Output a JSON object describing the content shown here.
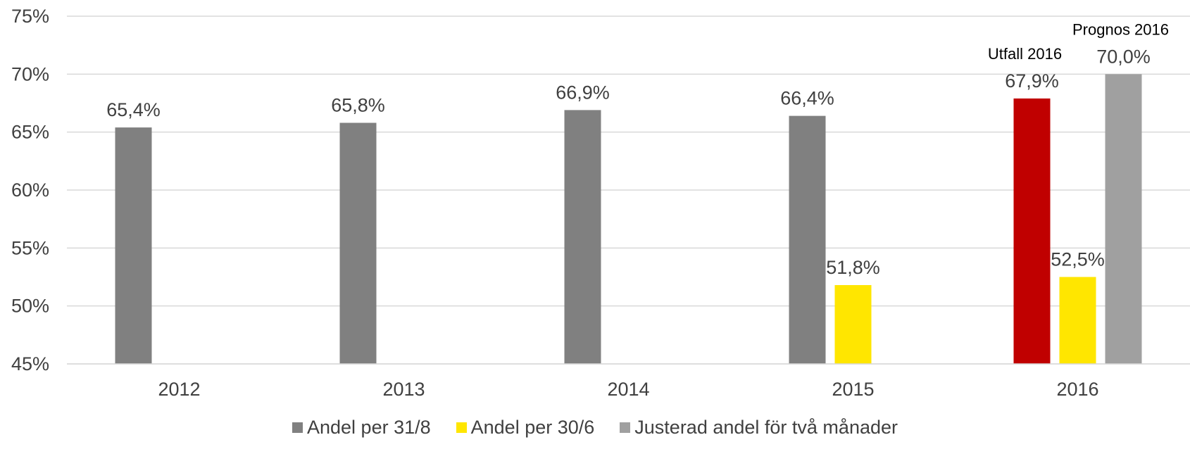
{
  "chart_data": {
    "type": "bar",
    "categories": [
      "2012",
      "2013",
      "2014",
      "2015",
      "2016"
    ],
    "ylim": [
      45,
      75
    ],
    "yticks": [
      "45%",
      "50%",
      "55%",
      "60%",
      "65%",
      "70%",
      "75%"
    ],
    "ytick_values": [
      45,
      50,
      55,
      60,
      65,
      70,
      75
    ],
    "grid": true,
    "legend_position": "bottom",
    "series": [
      {
        "name": "Andel per 31/8",
        "color": "#808080",
        "values": [
          65.4,
          65.8,
          66.9,
          66.4,
          67.9
        ],
        "labels": [
          "65,4%",
          "65,8%",
          "66,9%",
          "66,4%",
          "67,9%"
        ],
        "point_colors": [
          null,
          null,
          null,
          null,
          "#C00000"
        ]
      },
      {
        "name": "Andel per 30/6",
        "color": "#FFE600",
        "values": [
          null,
          null,
          null,
          51.8,
          52.5
        ],
        "labels": [
          null,
          null,
          null,
          "51,8%",
          "52,5%"
        ]
      },
      {
        "name": "Justerad andel för två månader",
        "color": "#A0A0A0",
        "values": [
          null,
          null,
          null,
          null,
          70.0
        ],
        "labels": [
          null,
          null,
          null,
          null,
          "70,0%"
        ]
      }
    ],
    "annotations": [
      {
        "text": "Utfall 2016",
        "series": 0,
        "category": 4
      },
      {
        "text": "Prognos 2016",
        "series": 2,
        "category": 4
      }
    ]
  }
}
